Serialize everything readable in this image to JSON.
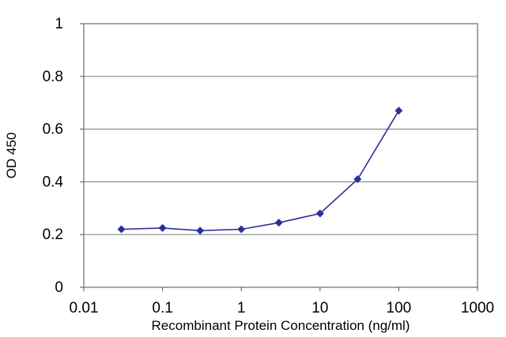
{
  "chart_data": {
    "type": "line",
    "title": "",
    "xlabel": "Recombinant Protein Concentration (ng/ml)",
    "ylabel": "OD 450",
    "x_scale": "log",
    "xlim": [
      0.01,
      1000
    ],
    "ylim": [
      0,
      1
    ],
    "x_ticks": [
      "0.01",
      "0.1",
      "1",
      "10",
      "100",
      "1000"
    ],
    "y_ticks": [
      "0",
      "0.2",
      "0.4",
      "0.6",
      "0.8",
      "1"
    ],
    "grid": "horizontal",
    "legend": "none",
    "series": [
      {
        "color": "#2b2f9a",
        "x": [
          0.03,
          0.1,
          0.3,
          1,
          3,
          10,
          30,
          100
        ],
        "y": [
          0.22,
          0.225,
          0.215,
          0.22,
          0.245,
          0.28,
          0.41,
          0.67
        ]
      }
    ]
  }
}
